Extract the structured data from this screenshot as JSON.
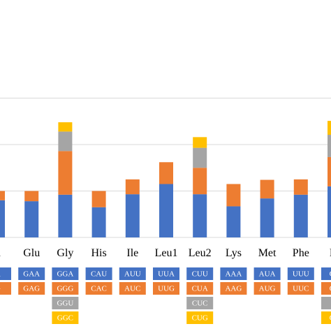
{
  "chart_data": {
    "type": "bar",
    "stacked": true,
    "title": "",
    "xlabel": "",
    "ylabel": "",
    "ylim": [
      0,
      3.3
    ],
    "grid": true,
    "categories": [
      "Asn",
      "Glu",
      "Gly",
      "His",
      "Ile",
      "Leu1",
      "Leu2",
      "Lys",
      "Met",
      "Phe",
      "Pro"
    ],
    "category_labels": [
      "n",
      "Glu",
      "Gly",
      "His",
      "Ile",
      "Leu1",
      "Leu2",
      "Lys",
      "Met",
      "Phe",
      "Pr"
    ],
    "colors": [
      "#4472c4",
      "#ed7d31",
      "#a5a5a5",
      "#ffc000"
    ],
    "series": [
      {
        "values": [
          0.8,
          0.78,
          0.92,
          0.65,
          0.93,
          1.15,
          0.93,
          0.67,
          0.84,
          0.92,
          1.1
        ]
      },
      {
        "values": [
          0.2,
          0.22,
          0.94,
          0.35,
          0.32,
          0.47,
          0.57,
          0.48,
          0.4,
          0.33,
          0.63
        ]
      },
      {
        "values": [
          0,
          0,
          0.42,
          0,
          0,
          0,
          0.43,
          0,
          0,
          0,
          0.48
        ]
      },
      {
        "values": [
          0,
          0,
          0.2,
          0,
          0,
          0,
          0.23,
          0,
          0,
          0,
          0.3
        ]
      }
    ],
    "codons": [
      [
        "AAU",
        "AAC"
      ],
      [
        "GAA",
        "GAG"
      ],
      [
        "GGA",
        "GGG",
        "GGU",
        "GGC"
      ],
      [
        "CAU",
        "CAC"
      ],
      [
        "AUU",
        "AUC"
      ],
      [
        "UUA",
        "UUG"
      ],
      [
        "CUU",
        "CUA",
        "CUC",
        "CUG"
      ],
      [
        "AAA",
        "AAG"
      ],
      [
        "AUA",
        "AUG"
      ],
      [
        "UUU",
        "UUC"
      ],
      [
        "CCU",
        "CCA",
        "CCC",
        "CCG"
      ]
    ],
    "codon_display": [
      [
        "A",
        "G"
      ],
      [
        "GAA",
        "GAG"
      ],
      [
        "GGA",
        "GGG",
        "GGU",
        "GGC"
      ],
      [
        "CAU",
        "CAC"
      ],
      [
        "AUU",
        "AUC"
      ],
      [
        "UUA",
        "UUG"
      ],
      [
        "CUU",
        "CUA",
        "CUC",
        "CUG"
      ],
      [
        "AAA",
        "AAG"
      ],
      [
        "AUA",
        "AUG"
      ],
      [
        "UUU",
        "UUC"
      ],
      [
        "CC",
        "CC",
        "",
        "CC"
      ]
    ]
  }
}
